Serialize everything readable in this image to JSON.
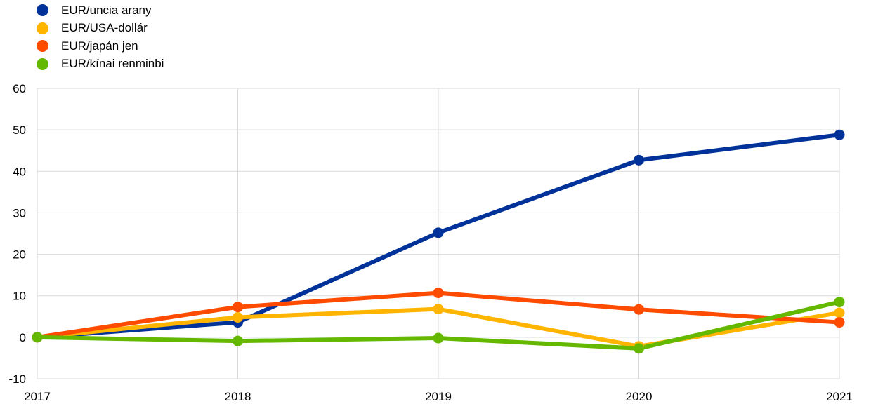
{
  "chart_data": {
    "type": "line",
    "title": "",
    "xlabel": "",
    "ylabel": "",
    "categories": [
      "2017",
      "2018",
      "2019",
      "2020",
      "2021"
    ],
    "ylim": [
      -10,
      60
    ],
    "yticks": [
      -10,
      0,
      10,
      20,
      30,
      40,
      50,
      60
    ],
    "grid": true,
    "legend_position": "top-left",
    "series": [
      {
        "name": "EUR/uncia arany",
        "color": "#003299",
        "values": [
          0,
          3.6,
          25.2,
          42.7,
          48.8
        ]
      },
      {
        "name": "EUR/USA-dollár",
        "color": "#FFB400",
        "values": [
          0,
          4.8,
          6.8,
          -2.2,
          5.9
        ]
      },
      {
        "name": "EUR/japán jen",
        "color": "#FF4B00",
        "values": [
          0,
          7.3,
          10.7,
          6.7,
          3.6
        ]
      },
      {
        "name": "EUR/kínai renminbi",
        "color": "#65B800",
        "values": [
          0,
          -0.9,
          -0.2,
          -2.7,
          8.5
        ]
      }
    ]
  }
}
